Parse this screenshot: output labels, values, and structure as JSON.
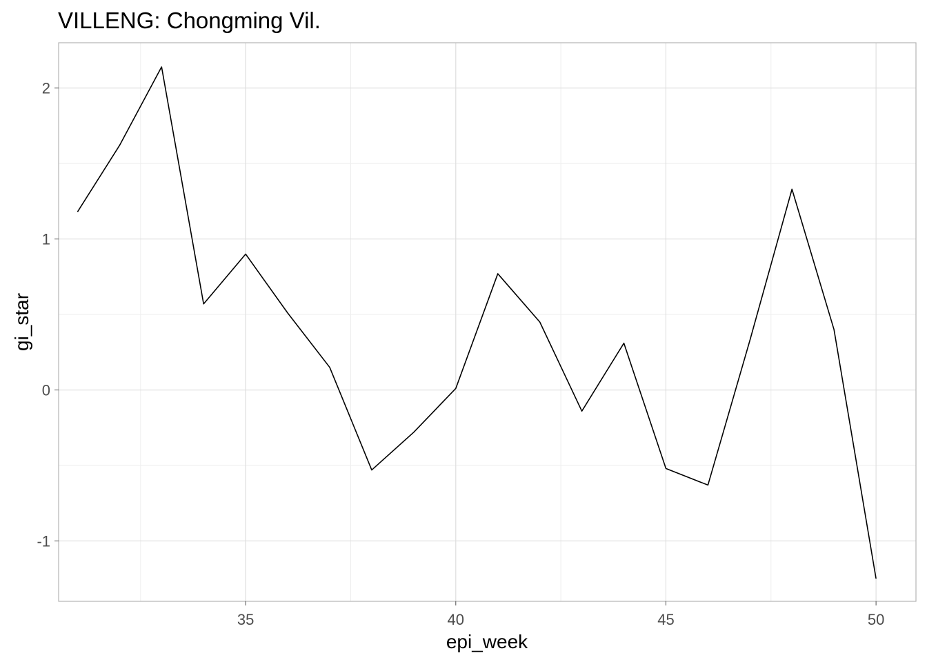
{
  "chart_data": {
    "type": "line",
    "title": "VILLENG: Chongming Vil.",
    "xlabel": "epi_week",
    "ylabel": "gi_star",
    "xlim": [
      30.55,
      50.95
    ],
    "ylim": [
      -1.4,
      2.3
    ],
    "x_ticks": [
      35,
      40,
      45,
      50
    ],
    "y_ticks": [
      -1,
      0,
      1,
      2
    ],
    "grid": true,
    "legend": "none",
    "line_color": "#000000",
    "series": [
      {
        "x": [
          31,
          32,
          33,
          34,
          35,
          36,
          37,
          38,
          39,
          40,
          41,
          42,
          43,
          44,
          45,
          46,
          47,
          48,
          49,
          50
        ],
        "values": [
          1.18,
          1.62,
          2.14,
          0.57,
          0.9,
          0.51,
          0.15,
          -0.53,
          -0.28,
          0.01,
          0.77,
          0.45,
          -0.14,
          0.31,
          -0.52,
          -0.63,
          0.33,
          1.33,
          0.4,
          -1.25
        ]
      }
    ]
  }
}
